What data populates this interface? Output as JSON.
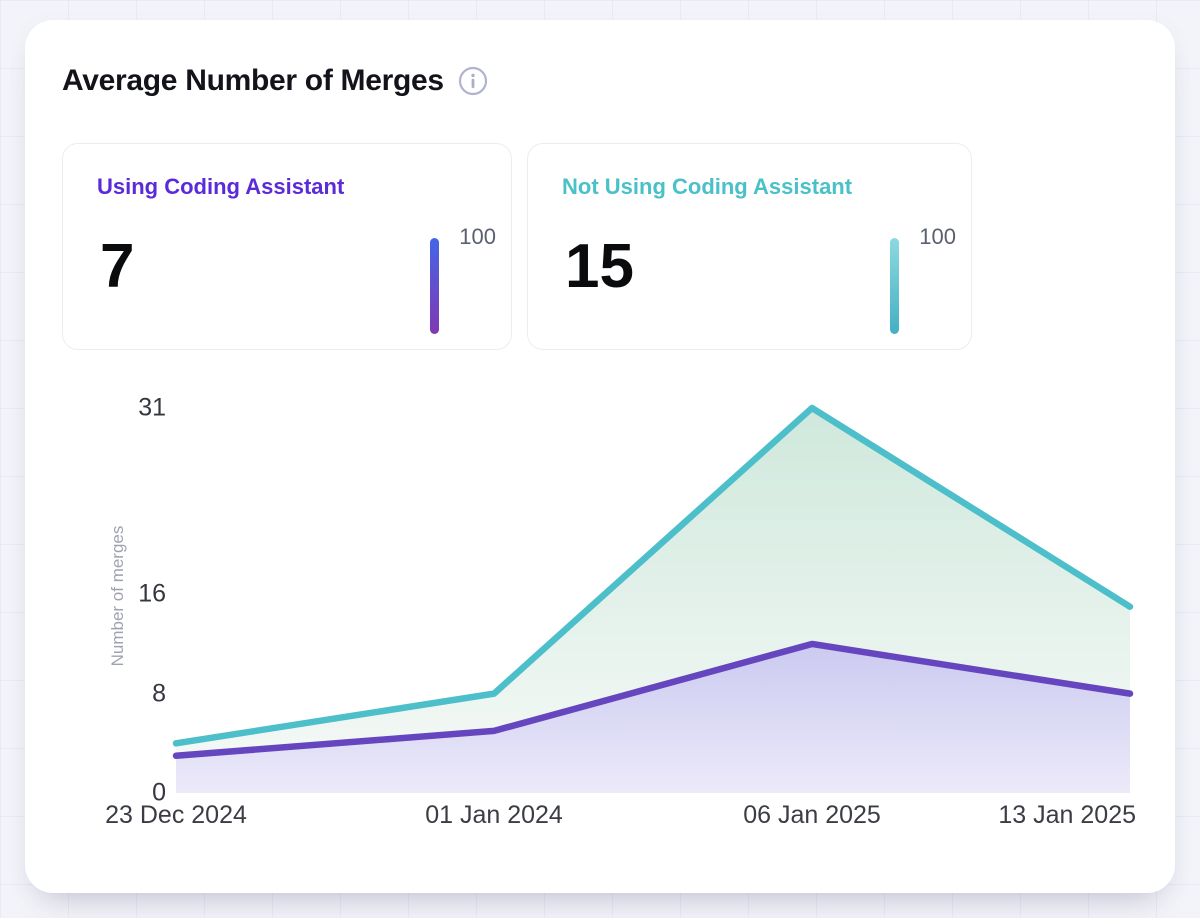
{
  "header": {
    "title": "Average Number of Merges"
  },
  "stats": [
    {
      "label": "Using Coding Assistant",
      "value": "7",
      "scale_max": "100",
      "accent": "#5B2BD9",
      "bar_gradient": [
        "#4466E8",
        "#8138B2"
      ]
    },
    {
      "label": "Not Using Coding Assistant",
      "value": "15",
      "scale_max": "100",
      "accent": "#4AC0C8",
      "bar_gradient": [
        "#8CD9E0",
        "#44B0C4"
      ]
    }
  ],
  "chart_data": {
    "type": "area",
    "title": "Average Number of Merges",
    "x": [
      "23 Dec 2024",
      "01 Jan 2024",
      "06 Jan 2025",
      "13 Jan 2025"
    ],
    "series": [
      {
        "name": "Not Using Coding Assistant",
        "values": [
          4,
          8,
          31,
          15
        ],
        "color": "#4DBFCA",
        "fill_top": "#CFE8DC",
        "fill_bottom": "#F7FAF8"
      },
      {
        "name": "Using Coding Assistant",
        "values": [
          3,
          5,
          12,
          8
        ],
        "color": "#6646BE",
        "fill_top": "#CBCAF0",
        "fill_bottom": "#ECEAF9"
      }
    ],
    "xlabel": "",
    "ylabel": "Number of merges",
    "yticks": [
      0,
      8,
      16,
      31
    ],
    "ylim": [
      0,
      31
    ],
    "grid": false,
    "legend_position": "none"
  }
}
